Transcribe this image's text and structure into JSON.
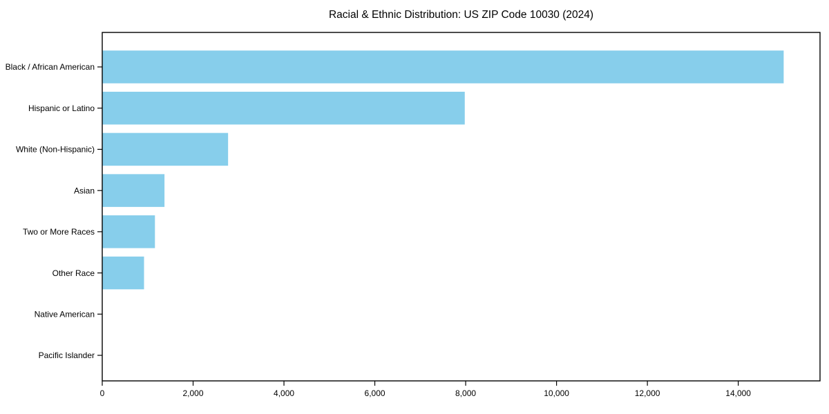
{
  "chart_data": {
    "type": "bar",
    "orientation": "horizontal",
    "title": "Racial & Ethnic Distribution: US ZIP Code 10030 (2024)",
    "categories": [
      "Black / African American",
      "Hispanic or Latino",
      "White (Non-Hispanic)",
      "Asian",
      "Two or More Races",
      "Other Race",
      "Native American",
      "Pacific Islander"
    ],
    "values": [
      15000,
      7980,
      2770,
      1370,
      1160,
      920,
      0,
      0
    ],
    "xlabel": "",
    "ylabel": "",
    "xlim": [
      0,
      15800
    ],
    "xticks": [
      0,
      2000,
      4000,
      6000,
      8000,
      10000,
      12000,
      14000
    ],
    "xtick_labels": [
      "0",
      "2,000",
      "4,000",
      "6,000",
      "8,000",
      "10,000",
      "12,000",
      "14,000"
    ],
    "bar_color": "#87CEEB",
    "axis_color": "#000000",
    "grid": false,
    "legend": null
  }
}
